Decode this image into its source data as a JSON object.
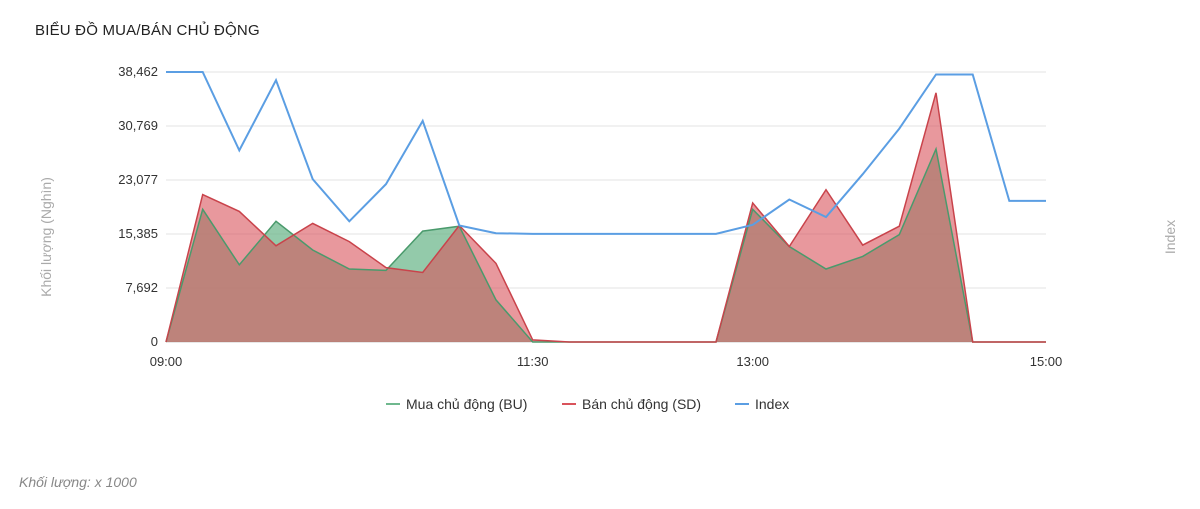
{
  "header": {
    "title": "BIỂU ĐỒ MUA/BÁN CHỦ ĐỘNG"
  },
  "footnote": "Khối lượng: x 1000",
  "chart_data": {
    "type": "area",
    "title": "BIỂU ĐỒ MUA/BÁN CHỦ ĐỘNG",
    "ylabel": "Khối lượng (Nghìn)",
    "y2label": "Index",
    "ylim": [
      0,
      38462
    ],
    "yticks": [
      "0",
      "7,692",
      "15,385",
      "23,077",
      "30,769",
      "38,462"
    ],
    "ytick_values": [
      0,
      7692,
      15385,
      23077,
      30769,
      38462
    ],
    "xticks": [
      "09:00",
      "11:30",
      "13:00",
      "15:00"
    ],
    "xtick_minutes": [
      0,
      150,
      240,
      360
    ],
    "x_minutes": [
      0,
      15,
      30,
      45,
      60,
      75,
      90,
      105,
      120,
      135,
      150,
      165,
      180,
      195,
      210,
      225,
      240,
      255,
      270,
      285,
      300,
      315,
      330,
      345,
      360
    ],
    "grid": true,
    "legend_position": "bottom",
    "series": [
      {
        "name": "Mua chủ động (BU)",
        "color": "#6fb88e",
        "values": [
          0,
          18900,
          11000,
          17200,
          13100,
          10400,
          10200,
          15800,
          16500,
          6000,
          0,
          0,
          0,
          0,
          0,
          0,
          18900,
          13600,
          10400,
          12200,
          15300,
          27500,
          0,
          0,
          0
        ]
      },
      {
        "name": "Bán chủ động (SD)",
        "color": "#d9535b",
        "values": [
          0,
          21000,
          18600,
          13700,
          16900,
          14300,
          10600,
          9900,
          16600,
          11200,
          300,
          0,
          0,
          0,
          0,
          0,
          19800,
          13600,
          21700,
          13800,
          16500,
          35500,
          0,
          0,
          0
        ]
      },
      {
        "name": "Index",
        "color": "#5b9ee3",
        "values": [
          38462,
          38462,
          27300,
          37300,
          23200,
          17200,
          22500,
          31500,
          16600,
          15500,
          15400,
          15400,
          15400,
          15400,
          15400,
          15400,
          16700,
          20300,
          17800,
          23900,
          30400,
          38100,
          38100,
          20100,
          20100
        ]
      }
    ]
  }
}
